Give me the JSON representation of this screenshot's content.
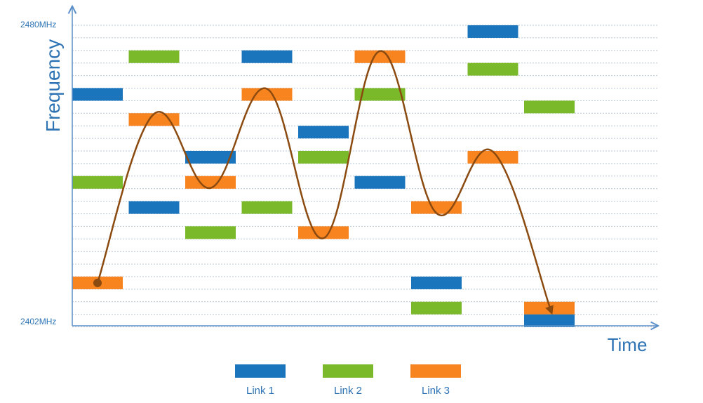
{
  "axes": {
    "y_label": "Frequency",
    "x_label": "Time",
    "y_top_label": "2480MHz",
    "y_bottom_label": "2402MHz"
  },
  "colors": {
    "link1": "#1a75bc",
    "link2": "#7ab929",
    "link3": "#f7841e",
    "axis": "#5b8fc9",
    "grid": "#b8c6d8",
    "path": "#8b4a10"
  },
  "legend": [
    {
      "key": "link1",
      "label": "Link 1"
    },
    {
      "key": "link2",
      "label": "Link 2"
    },
    {
      "key": "link3",
      "label": "Link 3"
    }
  ],
  "channel_count": 24,
  "time_slots": 9,
  "hops": [
    {
      "slot": 0,
      "link1": 18,
      "link2": 11,
      "link3": 3
    },
    {
      "slot": 1,
      "link1": 9,
      "link2": 21,
      "link3": 16
    },
    {
      "slot": 2,
      "link1": 13,
      "link2": 7,
      "link3": 11
    },
    {
      "slot": 3,
      "link1": 21,
      "link2": 9,
      "link3": 18
    },
    {
      "slot": 4,
      "link1": 15,
      "link2": 13,
      "link3": 7
    },
    {
      "slot": 5,
      "link1": 11,
      "link2": 18,
      "link3": 21
    },
    {
      "slot": 6,
      "link1": 3,
      "link2": 1,
      "link3": 9
    },
    {
      "slot": 7,
      "link1": 23,
      "link2": 20,
      "link3": 13
    },
    {
      "slot": 8,
      "link1": 0,
      "link2": 17,
      "link3": 1
    }
  ],
  "path_link": "link3"
}
